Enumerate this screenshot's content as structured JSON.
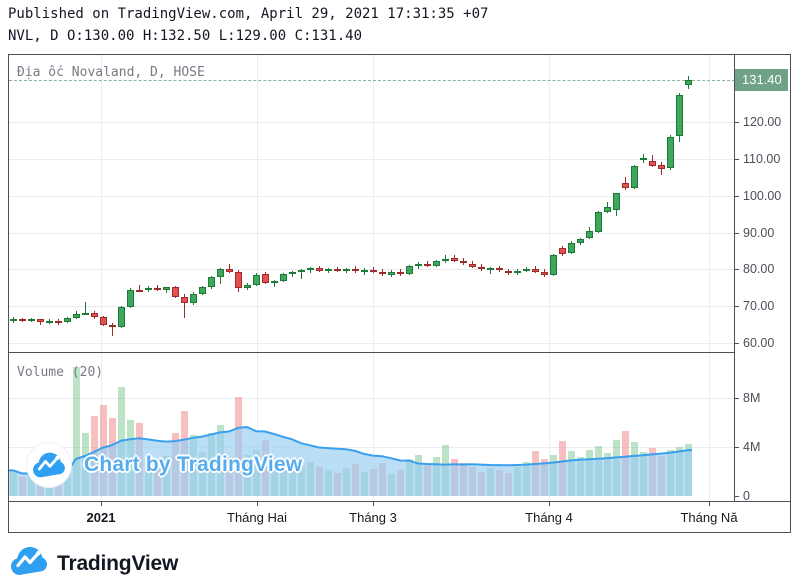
{
  "header": {
    "published_line": "Published on TradingView.com, April 29, 2021 17:31:35 +07",
    "symbol_line": "NVL, D O:130.00 H:132.50 L:129.00 C:131.40"
  },
  "chart": {
    "title": "Địa ốc Novaland, D, HOSE",
    "volume_label": "Volume (20)",
    "watermark_text": "Chart by TradingView",
    "last_price_label": "131.40"
  },
  "footer": {
    "brand": "TradingView"
  },
  "colors": {
    "candle_up_fill": "#3ea75c",
    "candle_up_border": "#1f7a39",
    "candle_down_fill": "#e25050",
    "candle_down_border": "#9e2b2b",
    "volume_up": "rgba(108,192,129,0.45)",
    "volume_down": "rgba(240,138,138,0.55)",
    "ma_area_fill": "rgba(150,205,243,0.65)",
    "ma_line": "#3aa0ee",
    "badge_bg": "#6fa287",
    "grid": "#e9edf3",
    "frame_border": "#4b4f57",
    "axis_text": "#4a4f59",
    "brand_blue": "#2f9ff2",
    "watermark_blue": "#55acee"
  },
  "chart_data": {
    "type": "candlestick",
    "symbol": "NVL",
    "exchange": "HOSE",
    "interval": "D",
    "last_ohlc": {
      "open": 130.0,
      "high": 132.5,
      "low": 129.0,
      "close": 131.4
    },
    "price_axis": {
      "min": 58,
      "max": 135,
      "ticks": [
        120,
        110,
        100,
        90,
        80,
        70,
        60
      ],
      "tick_labels": [
        "120.00",
        "110.00",
        "100.00",
        "90.00",
        "80.00",
        "70.00",
        "60.00"
      ]
    },
    "volume_axis": {
      "ticks_millions": [
        8,
        4,
        0
      ],
      "tick_labels": [
        "8M",
        "4M",
        "0"
      ]
    },
    "time_axis": {
      "tick_labels": [
        "2021",
        "Tháng Hai",
        "Tháng 3",
        "Tháng 4",
        "Tháng Nă"
      ]
    },
    "volume_ma_period": 20,
    "candles_ohlc": [
      [
        66.0,
        67.1,
        65.4,
        66.6
      ],
      [
        66.6,
        66.9,
        65.7,
        66.0
      ],
      [
        66.0,
        66.7,
        65.8,
        66.4
      ],
      [
        66.4,
        66.6,
        64.9,
        65.6
      ],
      [
        65.6,
        66.4,
        65.2,
        66.1
      ],
      [
        66.1,
        66.5,
        64.9,
        65.7
      ],
      [
        65.7,
        67.0,
        65.5,
        66.8
      ],
      [
        66.8,
        68.6,
        66.4,
        67.9
      ],
      [
        67.9,
        71.2,
        67.5,
        68.3
      ],
      [
        68.3,
        68.7,
        66.6,
        67.0
      ],
      [
        67.0,
        67.3,
        64.5,
        65.0
      ],
      [
        65.0,
        65.4,
        61.9,
        64.3
      ],
      [
        64.3,
        70.2,
        64.0,
        69.8
      ],
      [
        69.8,
        75.0,
        69.5,
        74.5
      ],
      [
        74.5,
        75.8,
        73.9,
        74.3
      ],
      [
        74.3,
        75.4,
        73.8,
        75.0
      ],
      [
        75.0,
        75.7,
        74.2,
        74.5
      ],
      [
        74.5,
        75.3,
        73.6,
        75.1
      ],
      [
        75.1,
        75.5,
        72.2,
        72.6
      ],
      [
        72.6,
        73.2,
        66.7,
        70.9
      ],
      [
        70.9,
        73.8,
        70.4,
        73.4
      ],
      [
        73.4,
        75.6,
        73.0,
        75.2
      ],
      [
        75.2,
        78.2,
        74.8,
        77.9
      ],
      [
        77.9,
        80.3,
        76.0,
        80.0
      ],
      [
        80.0,
        81.4,
        79.0,
        79.4
      ],
      [
        79.4,
        79.8,
        73.9,
        74.8
      ],
      [
        74.8,
        76.2,
        74.3,
        75.7
      ],
      [
        75.7,
        79.0,
        75.4,
        78.6
      ],
      [
        78.8,
        79.2,
        75.9,
        76.3
      ],
      [
        76.3,
        77.2,
        75.2,
        76.8
      ],
      [
        76.8,
        79.0,
        76.5,
        78.7
      ],
      [
        78.7,
        79.5,
        77.8,
        79.2
      ],
      [
        79.2,
        80.0,
        77.5,
        79.8
      ],
      [
        79.8,
        80.6,
        79.0,
        80.3
      ],
      [
        80.3,
        81.0,
        79.2,
        79.6
      ],
      [
        79.6,
        80.4,
        78.9,
        80.1
      ],
      [
        80.1,
        80.8,
        79.3,
        79.7
      ],
      [
        79.7,
        80.5,
        79.0,
        80.2
      ],
      [
        80.2,
        80.9,
        79.1,
        79.5
      ],
      [
        79.5,
        80.3,
        78.4,
        79.9
      ],
      [
        79.9,
        80.7,
        79.0,
        79.4
      ],
      [
        79.4,
        80.1,
        78.2,
        78.6
      ],
      [
        78.6,
        79.8,
        78.0,
        79.3
      ],
      [
        79.3,
        80.0,
        78.3,
        78.7
      ],
      [
        78.7,
        81.2,
        78.4,
        80.9
      ],
      [
        80.9,
        82.0,
        80.2,
        81.6
      ],
      [
        81.6,
        82.4,
        80.6,
        81.0
      ],
      [
        81.0,
        82.6,
        80.5,
        82.2
      ],
      [
        82.2,
        83.8,
        81.6,
        82.8
      ],
      [
        83.0,
        84.0,
        82.0,
        82.4
      ],
      [
        82.4,
        83.0,
        81.2,
        81.6
      ],
      [
        81.6,
        82.2,
        80.3,
        80.7
      ],
      [
        80.7,
        81.4,
        79.6,
        80.0
      ],
      [
        80.0,
        80.8,
        78.8,
        80.4
      ],
      [
        80.4,
        81.0,
        79.3,
        79.7
      ],
      [
        79.7,
        80.2,
        78.6,
        79.0
      ],
      [
        79.0,
        80.0,
        78.4,
        79.6
      ],
      [
        79.6,
        80.6,
        79.2,
        80.2
      ],
      [
        80.2,
        81.0,
        79.0,
        79.4
      ],
      [
        79.4,
        80.0,
        77.8,
        78.4
      ],
      [
        78.4,
        84.3,
        78.2,
        84.0
      ],
      [
        85.8,
        86.4,
        83.6,
        84.3
      ],
      [
        84.5,
        87.6,
        84.2,
        87.3
      ],
      [
        87.3,
        88.6,
        86.5,
        88.3
      ],
      [
        88.5,
        91.5,
        88.2,
        90.4
      ],
      [
        90.2,
        95.9,
        89.8,
        95.7
      ],
      [
        95.7,
        98.4,
        95.2,
        96.9
      ],
      [
        96.2,
        100.9,
        94.6,
        100.7
      ],
      [
        103.5,
        105.0,
        101.5,
        102.1
      ],
      [
        102.2,
        108.3,
        101.8,
        108.0
      ],
      [
        109.6,
        111.5,
        108.8,
        110.4
      ],
      [
        109.6,
        111.0,
        107.8,
        108.1
      ],
      [
        108.4,
        109.2,
        105.6,
        107.3
      ],
      [
        107.5,
        116.5,
        107.0,
        116.0
      ],
      [
        116.2,
        128.0,
        114.5,
        127.5
      ],
      [
        130.0,
        132.5,
        129.0,
        131.4
      ]
    ],
    "volumes_millions": [
      2.1,
      1.6,
      1.8,
      2.4,
      1.7,
      2.2,
      1.9,
      10.6,
      5.2,
      6.6,
      7.5,
      6.4,
      8.9,
      6.2,
      6.0,
      3.1,
      2.8,
      3.3,
      5.2,
      7.0,
      5.0,
      3.6,
      5.2,
      5.8,
      3.2,
      8.1,
      3.4,
      3.8,
      4.6,
      2.6,
      2.9,
      2.2,
      2.5,
      2.8,
      2.4,
      2.1,
      1.9,
      2.3,
      2.6,
      2.0,
      2.2,
      2.7,
      1.8,
      2.1,
      3.0,
      3.4,
      2.6,
      3.2,
      4.2,
      3.0,
      2.7,
      2.4,
      2.0,
      2.3,
      2.1,
      1.9,
      2.4,
      2.8,
      3.7,
      3.0,
      3.4,
      4.5,
      3.7,
      3.2,
      3.8,
      4.1,
      3.5,
      4.6,
      5.3,
      4.4,
      3.6,
      3.9,
      3.3,
      3.8,
      4.0,
      4.3
    ]
  }
}
